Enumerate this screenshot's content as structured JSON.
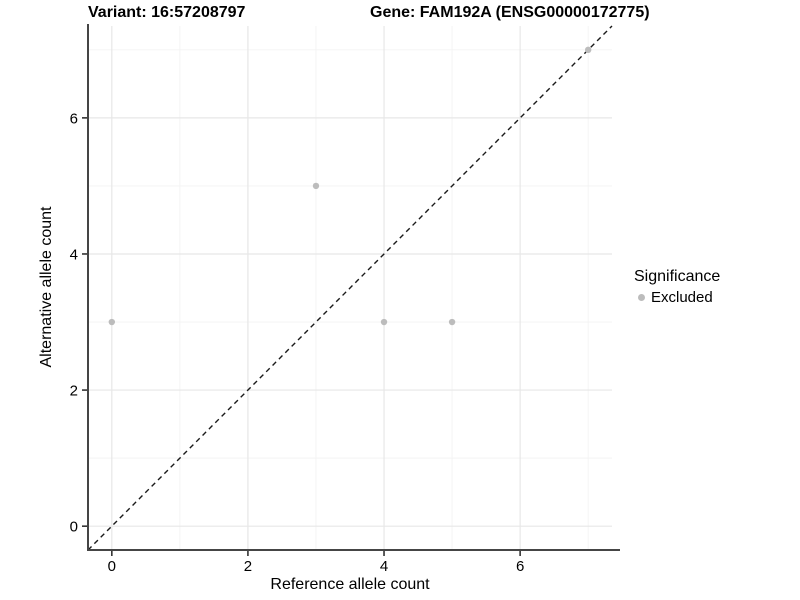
{
  "header": {
    "title_left": "Variant: 16:57208797",
    "title_right": "Gene: FAM192A (ENSG00000172775)"
  },
  "chart_data": {
    "type": "scatter",
    "title_left": "Variant: 16:57208797",
    "title_right": "Gene: FAM192A (ENSG00000172775)",
    "xlabel": "Reference allele count",
    "ylabel": "Alternative allele count",
    "xlim": [
      -0.35,
      7.35
    ],
    "ylim": [
      -0.35,
      7.35
    ],
    "x_ticks": [
      0,
      2,
      4,
      6
    ],
    "y_ticks": [
      0,
      2,
      4,
      6
    ],
    "x_minor_gridlines": [
      1,
      3,
      5,
      7
    ],
    "y_minor_gridlines": [
      1,
      3,
      5,
      7
    ],
    "grid": true,
    "identity_line": {
      "equation": "y = x",
      "style": "dashed",
      "color": "#1a1a1a"
    },
    "series": [
      {
        "name": "Excluded",
        "color": "#bcbcbc",
        "points": [
          {
            "x": 0,
            "y": 3
          },
          {
            "x": 3,
            "y": 5
          },
          {
            "x": 4,
            "y": 3
          },
          {
            "x": 5,
            "y": 3
          },
          {
            "x": 7,
            "y": 7
          }
        ]
      }
    ],
    "legend": {
      "title": "Significance",
      "position": "right",
      "items": [
        {
          "label": "Excluded",
          "color": "#bcbcbc"
        }
      ]
    },
    "colors": {
      "background": "#ffffff",
      "major_grid": "#e7e7e7",
      "minor_grid": "#f3f3f3",
      "axis_line": "#454545",
      "tick_mark": "#333333",
      "text": "#000000"
    }
  }
}
